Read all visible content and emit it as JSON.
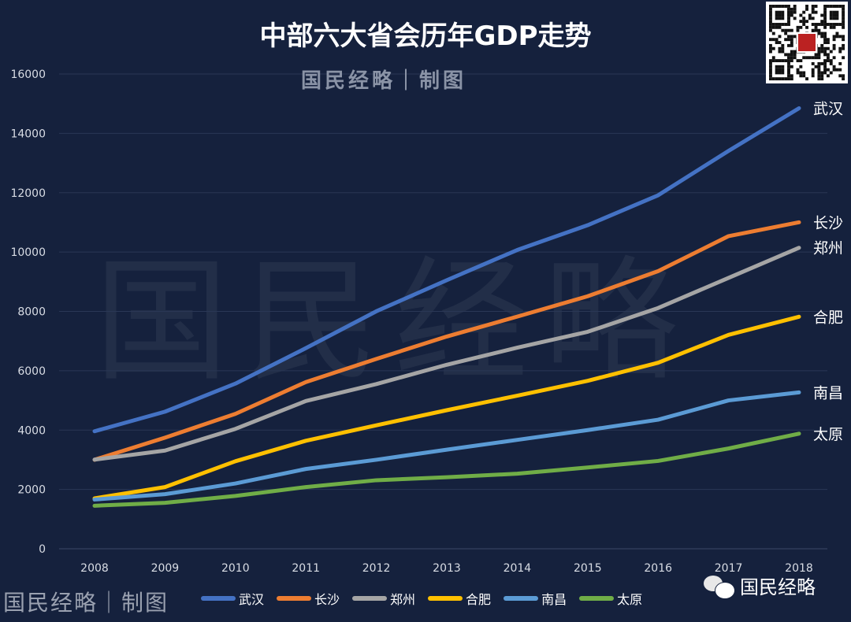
{
  "chart_data": {
    "type": "line",
    "title": "中部六大省会历年GDP走势",
    "xlabel": "",
    "ylabel": "",
    "x": [
      2008,
      2009,
      2010,
      2011,
      2012,
      2013,
      2014,
      2015,
      2016,
      2017,
      2018
    ],
    "ylim": [
      0,
      16000
    ],
    "yticks": [
      0,
      2000,
      4000,
      6000,
      8000,
      10000,
      12000,
      14000,
      16000
    ],
    "grid": true,
    "legend_placement": "bottom",
    "series": [
      {
        "name": "武汉",
        "color": "#4472c4",
        "values": [
          3960,
          4620,
          5566,
          6762,
          8004,
          9051,
          10069,
          10905,
          11913,
          13410,
          14847
        ]
      },
      {
        "name": "长沙",
        "color": "#ed7d31",
        "values": [
          3000,
          3745,
          4547,
          5619,
          6399,
          7153,
          7825,
          8510,
          9357,
          10536,
          11003
        ]
      },
      {
        "name": "郑州",
        "color": "#a5a5a5",
        "values": [
          3004,
          3309,
          4041,
          4980,
          5550,
          6202,
          6777,
          7312,
          8114,
          9130,
          10143
        ]
      },
      {
        "name": "合肥",
        "color": "#ffc000",
        "values": [
          1700,
          2080,
          2950,
          3640,
          4160,
          4670,
          5160,
          5660,
          6270,
          7210,
          7820
        ]
      },
      {
        "name": "南昌",
        "color": "#5b9bd5",
        "values": [
          1660,
          1840,
          2200,
          2690,
          3000,
          3340,
          3670,
          4000,
          4350,
          5000,
          5270
        ]
      },
      {
        "name": "太原",
        "color": "#70ad47",
        "values": [
          1450,
          1550,
          1780,
          2080,
          2310,
          2410,
          2530,
          2740,
          2960,
          3380,
          3880
        ]
      }
    ]
  },
  "watermarks": {
    "top": "国民经略｜制图",
    "big": "国民经略",
    "bottom_left": "国民经略｜制图"
  },
  "brand": {
    "name": "国民经略",
    "icon": "wechat-icon"
  },
  "qr_code": {
    "icon": "qr-code-icon",
    "logo_text": "国民经略"
  }
}
